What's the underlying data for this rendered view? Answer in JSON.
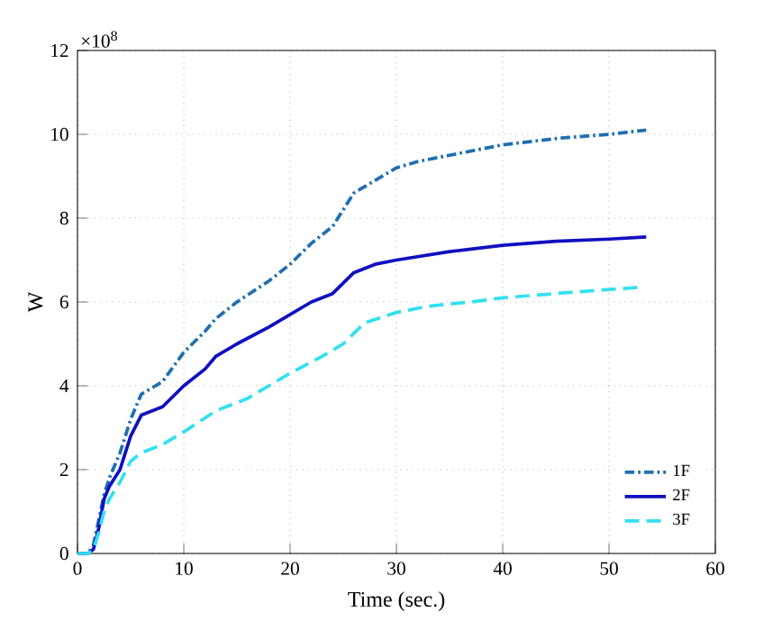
{
  "chart_data": {
    "type": "line",
    "xlabel": "Time (sec.)",
    "ylabel": "W",
    "annotations": [
      "×10$^{8}$"
    ],
    "xlim": [
      0,
      60
    ],
    "xticks": [
      0,
      10,
      20,
      30,
      40,
      50,
      60
    ],
    "ylim": [
      0,
      12
    ],
    "yticks": [
      0,
      2,
      4,
      6,
      8,
      10,
      12
    ],
    "grid": true,
    "legend": "bottom right",
    "series": [
      {
        "name": "1F",
        "color": "#1f6fb0",
        "line_style": "dashdot",
        "x": [
          0,
          1,
          1.5,
          2,
          2.5,
          3,
          4,
          5,
          6,
          8,
          10,
          12,
          13,
          15,
          18,
          20,
          22,
          24,
          26,
          28,
          30,
          32,
          35,
          40,
          45,
          50,
          53.5
        ],
        "values": [
          0,
          0,
          0.2,
          0.8,
          1.4,
          1.8,
          2.4,
          3.2,
          3.8,
          4.1,
          4.8,
          5.3,
          5.6,
          6.0,
          6.5,
          6.9,
          7.4,
          7.8,
          8.6,
          8.9,
          9.2,
          9.35,
          9.5,
          9.75,
          9.9,
          10.0,
          10.1
        ]
      },
      {
        "name": "2F",
        "color": "#1010c0",
        "line_style": "solid",
        "x": [
          0,
          1,
          1.5,
          2,
          2.5,
          3,
          4,
          5,
          6,
          8,
          10,
          12,
          13,
          15,
          18,
          20,
          22,
          24,
          26,
          28,
          30,
          35,
          40,
          45,
          50,
          53.5
        ],
        "values": [
          0,
          0,
          0.1,
          0.6,
          1.3,
          1.6,
          2.0,
          2.8,
          3.3,
          3.5,
          4.0,
          4.4,
          4.7,
          5.0,
          5.4,
          5.7,
          6.0,
          6.2,
          6.7,
          6.9,
          7.0,
          7.2,
          7.35,
          7.45,
          7.5,
          7.55
        ]
      },
      {
        "name": "3F",
        "color": "#33e0f0",
        "line_style": "dashed",
        "x": [
          0,
          1,
          1.5,
          2,
          2.5,
          3,
          4,
          5,
          6,
          8,
          10,
          13,
          16,
          18,
          20,
          23,
          25,
          27,
          30,
          33,
          37,
          40,
          45,
          50,
          53
        ],
        "values": [
          0,
          0,
          0.1,
          0.5,
          1.0,
          1.3,
          1.7,
          2.2,
          2.4,
          2.6,
          2.9,
          3.4,
          3.7,
          4.0,
          4.3,
          4.7,
          5.0,
          5.5,
          5.75,
          5.9,
          6.0,
          6.1,
          6.2,
          6.3,
          6.35
        ]
      }
    ]
  }
}
